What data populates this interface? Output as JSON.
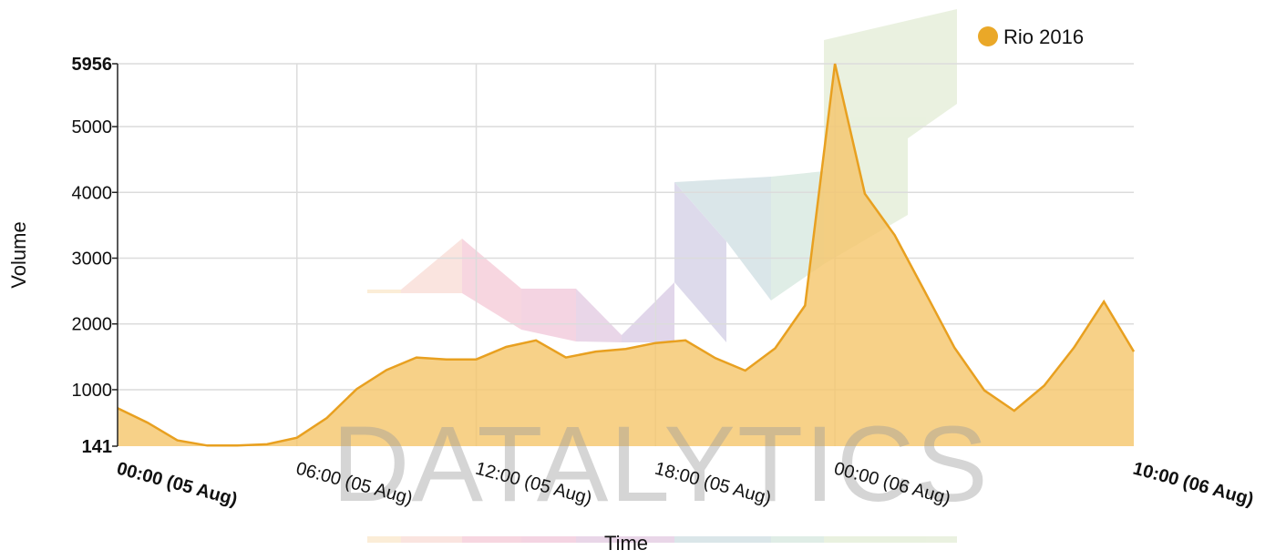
{
  "chart_data": {
    "type": "area",
    "xlabel": "Time",
    "ylabel": "Volume",
    "x": [
      "00:00 (05 Aug)",
      "01:00 (05 Aug)",
      "02:00 (05 Aug)",
      "03:00 (05 Aug)",
      "04:00 (05 Aug)",
      "05:00 (05 Aug)",
      "06:00 (05 Aug)",
      "07:00 (05 Aug)",
      "08:00 (05 Aug)",
      "09:00 (05 Aug)",
      "10:00 (05 Aug)",
      "11:00 (05 Aug)",
      "12:00 (05 Aug)",
      "13:00 (05 Aug)",
      "14:00 (05 Aug)",
      "15:00 (05 Aug)",
      "16:00 (05 Aug)",
      "17:00 (05 Aug)",
      "18:00 (05 Aug)",
      "19:00 (05 Aug)",
      "20:00 (05 Aug)",
      "21:00 (05 Aug)",
      "22:00 (05 Aug)",
      "23:00 (05 Aug)",
      "00:00 (06 Aug)",
      "01:00 (06 Aug)",
      "02:00 (06 Aug)",
      "03:00 (06 Aug)",
      "04:00 (06 Aug)",
      "05:00 (06 Aug)",
      "06:00 (06 Aug)",
      "07:00 (06 Aug)",
      "08:00 (06 Aug)",
      "09:00 (06 Aug)",
      "10:00 (06 Aug)"
    ],
    "series": [
      {
        "name": "Rio 2016",
        "values": [
          720,
          500,
          230,
          150,
          150,
          170,
          270,
          570,
          1010,
          1300,
          1490,
          1460,
          1460,
          1650,
          1750,
          1490,
          1580,
          1620,
          1710,
          1750,
          1480,
          1290,
          1630,
          2280,
          5956,
          3980,
          3350,
          2500,
          1640,
          990,
          680,
          1060,
          1640,
          2340,
          1580
        ]
      }
    ],
    "ylim": [
      141,
      5956
    ],
    "yticks": [
      {
        "value": 141,
        "label": "141",
        "bold": true
      },
      {
        "value": 1000,
        "label": "1000",
        "bold": false
      },
      {
        "value": 2000,
        "label": "2000",
        "bold": false
      },
      {
        "value": 3000,
        "label": "3000",
        "bold": false
      },
      {
        "value": 4000,
        "label": "4000",
        "bold": false
      },
      {
        "value": 5000,
        "label": "5000",
        "bold": false
      },
      {
        "value": 5956,
        "label": "5956",
        "bold": true
      }
    ],
    "xticks": [
      {
        "index": 0,
        "label": "00:00 (05 Aug)",
        "bold": true
      },
      {
        "index": 6,
        "label": "06:00 (05 Aug)",
        "bold": false
      },
      {
        "index": 12,
        "label": "12:00 (05 Aug)",
        "bold": false
      },
      {
        "index": 18,
        "label": "18:00 (05 Aug)",
        "bold": false
      },
      {
        "index": 24,
        "label": "00:00 (06 Aug)",
        "bold": false
      },
      {
        "index": 34,
        "label": "10:00 (06 Aug)",
        "bold": true
      }
    ],
    "grid": true,
    "legend_position": "top-right",
    "colors": {
      "line": "#e8a020",
      "fill": "#f5c66a",
      "legend_marker": "#eaa828"
    }
  },
  "watermark": "DATALYTICS"
}
